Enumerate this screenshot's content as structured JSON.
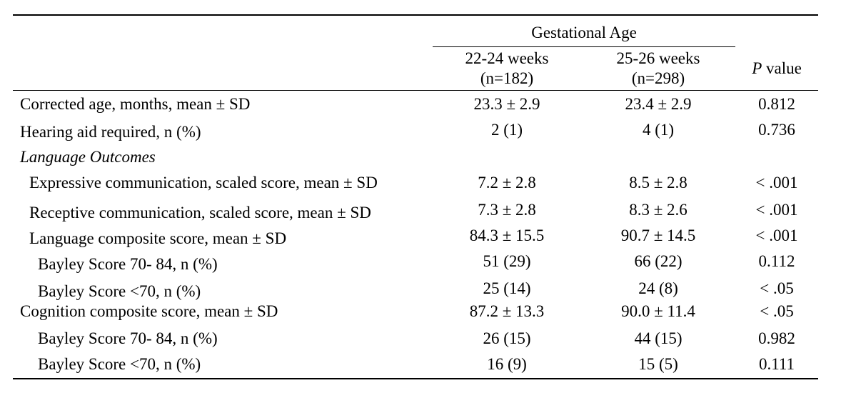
{
  "header": {
    "group_label": "Gestational Age",
    "col1": {
      "line1": "22-24 weeks",
      "line2": "(n=182)"
    },
    "col2": {
      "line1": "25-26 weeks",
      "line2": "(n=298)"
    },
    "pvalue_italic": "P",
    "pvalue_rest": " value"
  },
  "rows": [
    {
      "label": "Corrected age, months, mean ± SD",
      "v1": "23.3 ± 2.9",
      "v2": "23.4 ± 2.9",
      "p": "0.812"
    },
    {
      "label": "Hearing aid required, n (%)",
      "v1": "2 (1)",
      "v2": "4 (1)",
      "p": "0.736"
    },
    {
      "label": "Language Outcomes",
      "v1": "",
      "v2": "",
      "p": ""
    },
    {
      "label": "Expressive communication, scaled score, mean ± SD",
      "v1": "7.2 ± 2.8",
      "v2": "8.5 ± 2.8",
      "p": "< .001"
    },
    {
      "label": "Receptive communication, scaled score, mean ± SD",
      "v1": "7.3 ± 2.8",
      "v2": "8.3 ± 2.6",
      "p": "< .001"
    },
    {
      "label": "Language composite score, mean ± SD",
      "v1": "84.3 ± 15.5",
      "v2": "90.7 ± 14.5",
      "p": "< .001"
    },
    {
      "label": "Bayley Score 70- 84, n (%)",
      "v1": "51 (29)",
      "v2": "66 (22)",
      "p": "0.112"
    },
    {
      "label": "Bayley Score <70, n (%)",
      "v1": "25 (14)",
      "v2": "24 (8)",
      "p": "< .05"
    },
    {
      "label": "Cognition composite score, mean ± SD",
      "v1": "87.2 ± 13.3",
      "v2": "90.0 ± 11.4",
      "p": "< .05"
    },
    {
      "label": "Bayley Score 70- 84, n (%)",
      "v1": "26 (15)",
      "v2": "44 (15)",
      "p": "0.982"
    },
    {
      "label": "Bayley Score <70, n (%)",
      "v1": "16 (9)",
      "v2": "15 (5)",
      "p": "0.111"
    }
  ]
}
